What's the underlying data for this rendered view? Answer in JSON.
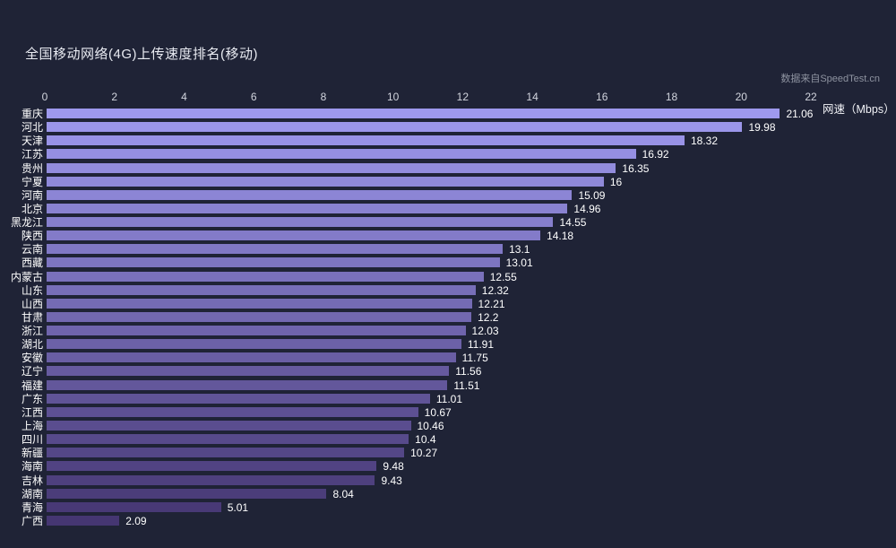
{
  "header": {
    "title": "全国移动网络(4G)上传速度排名(移动)",
    "source": "数据来自SpeedTest.cn"
  },
  "chart_data": {
    "type": "bar",
    "orientation": "horizontal",
    "title": "全国移动网络(4G)上传速度排名(移动)",
    "xlabel": "网速（Mbps）",
    "categories": [
      "重庆",
      "河北",
      "天津",
      "江苏",
      "贵州",
      "宁夏",
      "河南",
      "北京",
      "黑龙江",
      "陕西",
      "云南",
      "西藏",
      "内蒙古",
      "山东",
      "山西",
      "甘肃",
      "浙江",
      "湖北",
      "安徽",
      "辽宁",
      "福建",
      "广东",
      "江西",
      "上海",
      "四川",
      "新疆",
      "海南",
      "吉林",
      "湖南",
      "青海",
      "广西"
    ],
    "values": [
      21.06,
      19.98,
      18.32,
      16.92,
      16.35,
      16,
      15.09,
      14.96,
      14.55,
      14.18,
      13.1,
      13.01,
      12.55,
      12.32,
      12.21,
      12.2,
      12.03,
      11.91,
      11.75,
      11.56,
      11.51,
      11.01,
      10.67,
      10.46,
      10.4,
      10.27,
      9.48,
      9.43,
      8.04,
      5.01,
      2.09
    ],
    "xlim": [
      0,
      22
    ],
    "x_ticks": [
      0,
      2,
      4,
      6,
      8,
      10,
      12,
      14,
      16,
      18,
      20,
      22
    ],
    "grid": false,
    "legend": null,
    "colors": {
      "background": "#1f2336",
      "bar_top": "#9e99ee",
      "bar_bottom": "#453672",
      "label_text": "#ffffff",
      "axis_text": "#d2d5de",
      "source_text": "#8e93a0"
    }
  }
}
